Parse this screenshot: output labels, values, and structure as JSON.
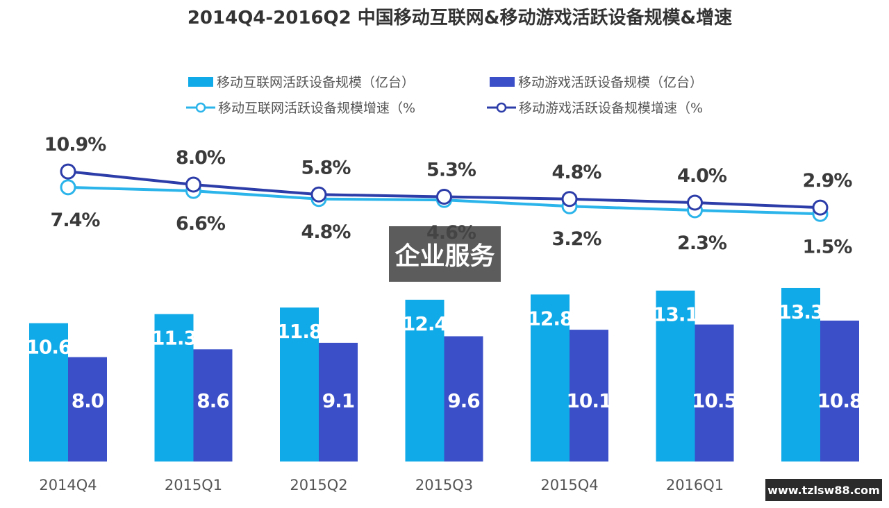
{
  "chart_data": {
    "type": "bar",
    "title": "2014Q4-2016Q2 中国移动互联网&移动游戏活跃设备规模&增速",
    "categories": [
      "2014Q4",
      "2015Q1",
      "2015Q2",
      "2015Q3",
      "2015Q4",
      "2016Q1",
      "2016Q2"
    ],
    "series": [
      {
        "name": "移动互联网活跃设备规模（亿台）",
        "kind": "bar",
        "color": "#10aae8",
        "values": [
          10.6,
          11.3,
          11.8,
          12.4,
          12.8,
          13.1,
          13.3
        ]
      },
      {
        "name": "移动游戏活跃设备规模（亿台）",
        "kind": "bar",
        "color": "#3a4fc8",
        "values": [
          8.0,
          8.6,
          9.1,
          9.6,
          10.1,
          10.5,
          10.8
        ]
      },
      {
        "name": "移动互联网活跃设备规模增速（%",
        "kind": "line",
        "color": "#2ab4ea",
        "values": [
          7.4,
          6.6,
          4.8,
          4.6,
          3.2,
          2.3,
          1.5
        ],
        "labels": [
          "7.4%",
          "6.6%",
          "4.8%",
          "4.6%",
          "3.2%",
          "2.3%",
          "1.5%"
        ]
      },
      {
        "name": "移动游戏活跃设备规模增速（%",
        "kind": "line",
        "color": "#2c3ca8",
        "values": [
          10.9,
          8.0,
          5.8,
          5.3,
          4.8,
          4.0,
          2.9
        ],
        "labels": [
          "10.9%",
          "8.0%",
          "5.8%",
          "5.3%",
          "4.8%",
          "4.0%",
          "2.9%"
        ]
      }
    ],
    "legend_position": "top",
    "grid": false
  },
  "watermarks": {
    "center_text": "企业服务",
    "corner_text": "www.tzlsw88.com"
  }
}
